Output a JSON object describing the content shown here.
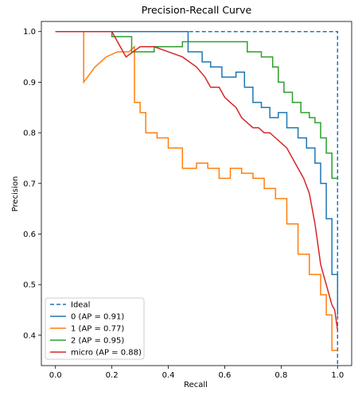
{
  "chart_data": {
    "type": "line",
    "title": "Precision-Recall Curve",
    "xlabel": "Recall",
    "ylabel": "Precision",
    "xlim": [
      -0.05,
      1.05
    ],
    "ylim": [
      0.34,
      1.02
    ],
    "x_ticks": [
      0.0,
      0.2,
      0.4,
      0.6,
      0.8,
      1.0
    ],
    "x_tick_labels": [
      "0.0",
      "0.2",
      "0.4",
      "0.6",
      "0.8",
      "1.0"
    ],
    "y_ticks": [
      0.4,
      0.5,
      0.6,
      0.7,
      0.8,
      0.9,
      1.0
    ],
    "y_tick_labels": [
      "0.4",
      "0.5",
      "0.6",
      "0.7",
      "0.8",
      "0.9",
      "1.0"
    ],
    "grid": false,
    "legend_position": "lower-left",
    "series": [
      {
        "name": "Ideal",
        "color": "#1f77b4",
        "dashed": true,
        "step": false,
        "x": [
          0.0,
          1.0,
          1.0
        ],
        "y": [
          1.0,
          1.0,
          0.34
        ]
      },
      {
        "name": "0 (AP = 0.91)",
        "color": "#1f77b4",
        "dashed": false,
        "step": true,
        "x": [
          0.0,
          0.47,
          0.47,
          0.52,
          0.52,
          0.55,
          0.55,
          0.59,
          0.59,
          0.64,
          0.64,
          0.67,
          0.67,
          0.7,
          0.7,
          0.73,
          0.73,
          0.76,
          0.76,
          0.79,
          0.79,
          0.82,
          0.82,
          0.86,
          0.86,
          0.89,
          0.89,
          0.92,
          0.92,
          0.94,
          0.94,
          0.96,
          0.96,
          0.98,
          0.98,
          1.0,
          1.0
        ],
        "y": [
          1.0,
          1.0,
          0.96,
          0.96,
          0.94,
          0.94,
          0.93,
          0.93,
          0.91,
          0.91,
          0.92,
          0.92,
          0.89,
          0.89,
          0.86,
          0.86,
          0.85,
          0.85,
          0.83,
          0.83,
          0.84,
          0.84,
          0.81,
          0.81,
          0.79,
          0.79,
          0.77,
          0.77,
          0.74,
          0.74,
          0.7,
          0.7,
          0.63,
          0.63,
          0.52,
          0.52,
          0.44
        ]
      },
      {
        "name": "1 (AP = 0.77)",
        "color": "#ff7f0e",
        "dashed": false,
        "step": true,
        "x": [
          0.0,
          0.1,
          0.1,
          0.14,
          0.18,
          0.22,
          0.26,
          0.28,
          0.28,
          0.3,
          0.3,
          0.32,
          0.32,
          0.36,
          0.36,
          0.4,
          0.4,
          0.45,
          0.45,
          0.5,
          0.5,
          0.54,
          0.54,
          0.58,
          0.58,
          0.62,
          0.62,
          0.66,
          0.66,
          0.7,
          0.7,
          0.74,
          0.74,
          0.78,
          0.78,
          0.82,
          0.82,
          0.86,
          0.86,
          0.9,
          0.9,
          0.94,
          0.94,
          0.96,
          0.96,
          0.98,
          0.98,
          1.0
        ],
        "y": [
          1.0,
          1.0,
          0.9,
          0.93,
          0.95,
          0.96,
          0.96,
          0.97,
          0.86,
          0.86,
          0.84,
          0.84,
          0.8,
          0.8,
          0.79,
          0.79,
          0.77,
          0.77,
          0.73,
          0.73,
          0.74,
          0.74,
          0.73,
          0.73,
          0.71,
          0.71,
          0.73,
          0.73,
          0.72,
          0.72,
          0.71,
          0.71,
          0.69,
          0.69,
          0.67,
          0.67,
          0.62,
          0.62,
          0.56,
          0.56,
          0.52,
          0.52,
          0.48,
          0.48,
          0.44,
          0.44,
          0.37,
          0.37
        ]
      },
      {
        "name": "2 (AP = 0.95)",
        "color": "#2ca02c",
        "dashed": false,
        "step": true,
        "x": [
          0.0,
          0.2,
          0.2,
          0.27,
          0.27,
          0.35,
          0.35,
          0.45,
          0.45,
          0.55,
          0.55,
          0.68,
          0.68,
          0.73,
          0.73,
          0.77,
          0.77,
          0.79,
          0.79,
          0.81,
          0.81,
          0.84,
          0.84,
          0.87,
          0.87,
          0.9,
          0.9,
          0.92,
          0.92,
          0.94,
          0.94,
          0.96,
          0.96,
          0.98,
          0.98,
          1.0
        ],
        "y": [
          1.0,
          1.0,
          0.99,
          0.99,
          0.96,
          0.96,
          0.97,
          0.97,
          0.98,
          0.98,
          0.98,
          0.98,
          0.96,
          0.96,
          0.95,
          0.95,
          0.93,
          0.93,
          0.9,
          0.9,
          0.88,
          0.88,
          0.86,
          0.86,
          0.84,
          0.84,
          0.83,
          0.83,
          0.82,
          0.82,
          0.79,
          0.79,
          0.76,
          0.76,
          0.71,
          0.71
        ]
      },
      {
        "name": "micro (AP = 0.88)",
        "color": "#d62728",
        "dashed": false,
        "step": false,
        "x": [
          0.0,
          0.2,
          0.25,
          0.3,
          0.35,
          0.4,
          0.45,
          0.5,
          0.53,
          0.55,
          0.58,
          0.6,
          0.62,
          0.64,
          0.66,
          0.68,
          0.7,
          0.72,
          0.74,
          0.76,
          0.78,
          0.8,
          0.82,
          0.84,
          0.86,
          0.88,
          0.9,
          0.91,
          0.92,
          0.93,
          0.94,
          0.95,
          0.96,
          0.97,
          0.98,
          0.99,
          1.0
        ],
        "y": [
          1.0,
          1.0,
          0.95,
          0.97,
          0.97,
          0.96,
          0.95,
          0.93,
          0.91,
          0.89,
          0.89,
          0.87,
          0.86,
          0.85,
          0.83,
          0.82,
          0.81,
          0.81,
          0.8,
          0.8,
          0.79,
          0.78,
          0.77,
          0.75,
          0.73,
          0.71,
          0.68,
          0.65,
          0.62,
          0.58,
          0.54,
          0.52,
          0.5,
          0.48,
          0.46,
          0.45,
          0.41
        ]
      }
    ]
  }
}
